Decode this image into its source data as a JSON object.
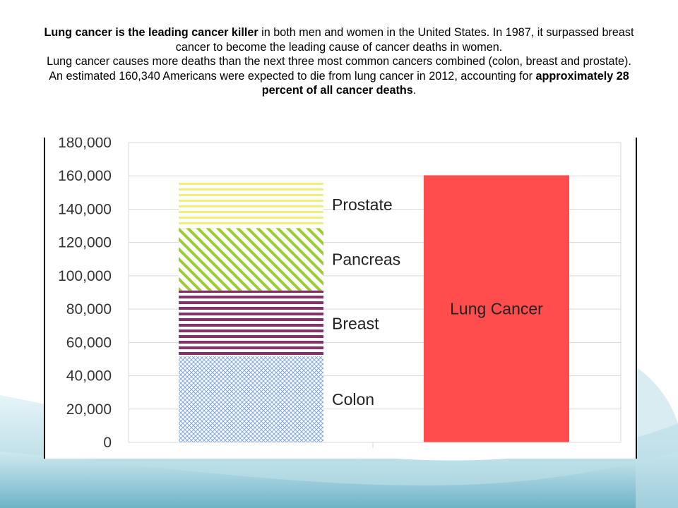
{
  "caption": {
    "line1_bold": "Lung cancer is the leading cancer killer",
    "line1_rest": " in both men and women in the United States. In 1987, it surpassed breast cancer to become the leading cause of cancer deaths in women.",
    "line2": "Lung cancer causes more deaths than the next three most common cancers combined (colon, breast and prostate). An estimated 160,340 Americans were expected to die from lung cancer in 2012, accounting for ",
    "line2_bold": "approximately 28 percent of all cancer deaths",
    "line2_end": "."
  },
  "colors": {
    "colon": "#7ea7e3",
    "breast": "#8b2f6a",
    "pancreas": "#9acd32",
    "prostate": "#f2f07a",
    "lung": "#ff4d4d",
    "grid": "#d9d9d9"
  },
  "chart_data": {
    "type": "bar",
    "categories": [
      "",
      ""
    ],
    "stacked_bar": {
      "segments": [
        {
          "name": "Colon",
          "value": 51690
        },
        {
          "name": "Breast",
          "value": 39510
        },
        {
          "name": "Pancreas",
          "value": 37390
        },
        {
          "name": "Prostate",
          "value": 28170
        }
      ]
    },
    "single_bar": {
      "name": "Lung Cancer",
      "value": 160340
    },
    "ylim": [
      0,
      180000
    ],
    "yticks": [
      "0",
      "20,000",
      "40,000",
      "60,000",
      "80,000",
      "100,000",
      "120,000",
      "140,000",
      "160,000",
      "180,000"
    ],
    "grid": true,
    "title": "",
    "xlabel": "",
    "ylabel": ""
  }
}
